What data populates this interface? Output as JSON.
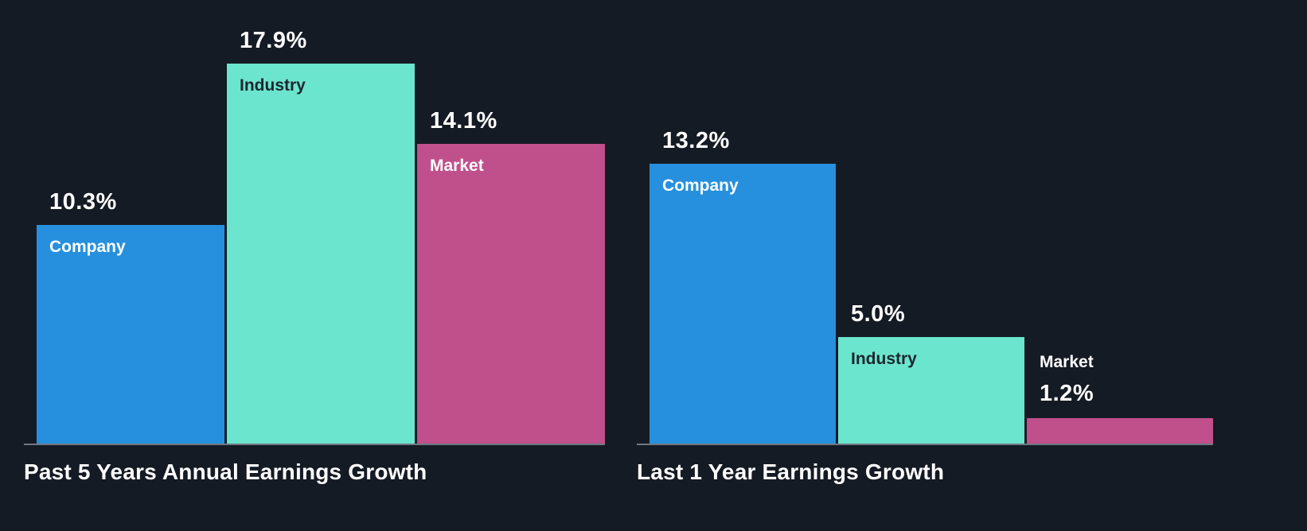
{
  "colors": {
    "background": "#151b24",
    "baseline": "#6f7884",
    "value_label": "#ffffff",
    "title_text": "#ffffff"
  },
  "palette": {
    "bar_colors": [
      "#2790de",
      "#6ce5ce",
      "#c0508c"
    ],
    "series_label_colors": [
      "#ffffff",
      "#1b2530",
      "#ffffff"
    ]
  },
  "chart_data": [
    {
      "type": "bar",
      "title": "Past 5 Years Annual Earnings Growth",
      "categories": [
        "Company",
        "Industry",
        "Market"
      ],
      "values": [
        10.3,
        17.9,
        14.1
      ],
      "value_labels": [
        "10.3%",
        "17.9%",
        "14.1%"
      ],
      "unit": "%",
      "ylim": [
        0,
        17.9
      ],
      "labels_outside": [
        false,
        false,
        false
      ],
      "grid": false,
      "legend": "none (category labels inside bars)"
    },
    {
      "type": "bar",
      "title": "Last 1 Year Earnings Growth",
      "categories": [
        "Company",
        "Industry",
        "Market"
      ],
      "values": [
        13.2,
        5.0,
        1.2
      ],
      "value_labels": [
        "13.2%",
        "5.0%",
        "1.2%"
      ],
      "unit": "%",
      "ylim": [
        0,
        17.9
      ],
      "labels_outside": [
        false,
        false,
        true
      ],
      "grid": false,
      "legend": "none (category labels inside bars)"
    }
  ]
}
